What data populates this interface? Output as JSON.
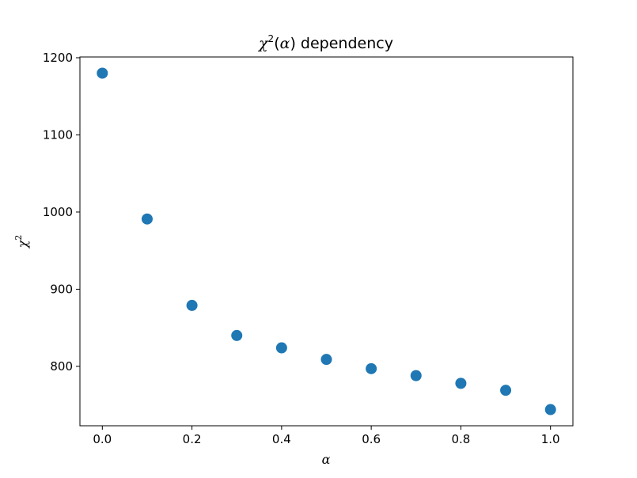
{
  "chart_data": {
    "type": "scatter",
    "title": {
      "prefix": "χ",
      "power": "2",
      "paren_open": "(",
      "arg": "α",
      "paren_close": ")",
      "suffix": " dependency"
    },
    "xlabel": "α",
    "ylabel": {
      "base": "χ",
      "power": "2"
    },
    "xlim": [
      -0.05,
      1.05
    ],
    "ylim": [
      723,
      1201
    ],
    "x_ticks": [
      0.0,
      0.2,
      0.4,
      0.6,
      0.8,
      1.0
    ],
    "x_tick_labels": [
      "0.0",
      "0.2",
      "0.4",
      "0.6",
      "0.8",
      "1.0"
    ],
    "y_ticks": [
      800,
      900,
      1000,
      1100,
      1200
    ],
    "y_tick_labels": [
      "800",
      "900",
      "1000",
      "1100",
      "1200"
    ],
    "grid": false,
    "series": [
      {
        "color": "#1f77b4",
        "points": [
          {
            "x": 0.0,
            "y": 1180
          },
          {
            "x": 0.1,
            "y": 991
          },
          {
            "x": 0.2,
            "y": 879
          },
          {
            "x": 0.3,
            "y": 840
          },
          {
            "x": 0.4,
            "y": 824
          },
          {
            "x": 0.5,
            "y": 809
          },
          {
            "x": 0.6,
            "y": 797
          },
          {
            "x": 0.7,
            "y": 788
          },
          {
            "x": 0.8,
            "y": 778
          },
          {
            "x": 0.9,
            "y": 769
          },
          {
            "x": 1.0,
            "y": 744
          }
        ]
      }
    ]
  }
}
